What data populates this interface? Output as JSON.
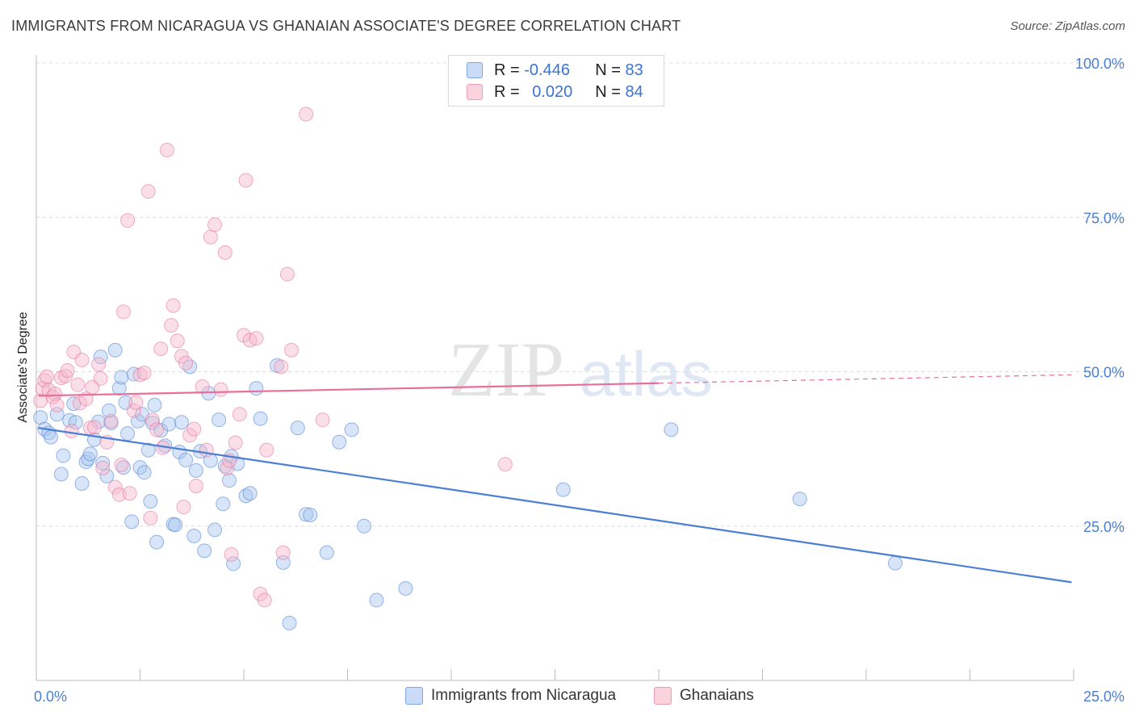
{
  "title": "IMMIGRANTS FROM NICARAGUA VS GHANAIAN ASSOCIATE'S DEGREE CORRELATION CHART",
  "source": "Source: ZipAtlas.com",
  "watermark": {
    "zip": "ZIP",
    "atlas": "atlas"
  },
  "legend": {
    "rows": [
      {
        "r_label": "R = ",
        "r_value": "-0.446",
        "n_label": "N = ",
        "n_value": "83",
        "color": "#a9c6f0"
      },
      {
        "r_label": "R = ",
        "r_value": "0.020",
        "n_label": "N = ",
        "n_value": "84",
        "color": "#f6b9cb"
      }
    ]
  },
  "bottom_legend": [
    {
      "label": "Immigrants from Nicaragua",
      "color": "#a9c6f0"
    },
    {
      "label": "Ghanaians",
      "color": "#f6b9cb"
    }
  ],
  "chart_data": {
    "type": "scatter",
    "title": "IMMIGRANTS FROM NICARAGUA VS GHANAIAN ASSOCIATE'S DEGREE CORRELATION CHART",
    "xlabel": "",
    "ylabel": "Associate's Degree",
    "xlim": [
      0,
      25
    ],
    "ylim": [
      0,
      100
    ],
    "x_tick_labels": [
      "0.0%",
      "25.0%"
    ],
    "y_ticks": [
      25,
      50,
      75,
      100
    ],
    "y_tick_labels": [
      "25.0%",
      "50.0%",
      "75.0%",
      "100.0%"
    ],
    "grid": true,
    "series": [
      {
        "name": "Immigrants from Nicaragua",
        "color": "#4a7fd4",
        "fill": "#a9c6f0",
        "trend": {
          "x0": 0.05,
          "y0": 40.9,
          "x1": 24.95,
          "y1": 15.9,
          "solid_until": 24.95
        },
        "points": [
          [
            0.1,
            42.6
          ],
          [
            0.2,
            40.7
          ],
          [
            0.3,
            40.1
          ],
          [
            0.35,
            39.4
          ],
          [
            0.5,
            43.1
          ],
          [
            0.6,
            33.4
          ],
          [
            0.65,
            36.4
          ],
          [
            0.8,
            42.1
          ],
          [
            0.9,
            44.8
          ],
          [
            0.95,
            41.8
          ],
          [
            1.1,
            31.9
          ],
          [
            1.2,
            35.4
          ],
          [
            1.25,
            35.9
          ],
          [
            1.3,
            36.7
          ],
          [
            1.4,
            39.0
          ],
          [
            1.5,
            41.9
          ],
          [
            1.55,
            52.4
          ],
          [
            1.6,
            35.2
          ],
          [
            1.7,
            33.1
          ],
          [
            1.75,
            43.7
          ],
          [
            1.8,
            41.7
          ],
          [
            1.9,
            53.5
          ],
          [
            2.0,
            47.3
          ],
          [
            2.05,
            49.1
          ],
          [
            2.1,
            34.5
          ],
          [
            2.15,
            45.0
          ],
          [
            2.2,
            40.0
          ],
          [
            2.3,
            25.7
          ],
          [
            2.35,
            49.6
          ],
          [
            2.45,
            42.0
          ],
          [
            2.5,
            34.5
          ],
          [
            2.55,
            43.1
          ],
          [
            2.6,
            33.7
          ],
          [
            2.7,
            37.3
          ],
          [
            2.75,
            29.0
          ],
          [
            2.8,
            41.7
          ],
          [
            2.85,
            44.6
          ],
          [
            2.9,
            22.4
          ],
          [
            3.0,
            40.5
          ],
          [
            3.1,
            38.0
          ],
          [
            3.2,
            41.5
          ],
          [
            3.3,
            25.3
          ],
          [
            3.35,
            25.2
          ],
          [
            3.45,
            37.0
          ],
          [
            3.5,
            41.8
          ],
          [
            3.6,
            35.7
          ],
          [
            3.7,
            50.8
          ],
          [
            3.8,
            23.4
          ],
          [
            3.85,
            34.0
          ],
          [
            3.95,
            37.1
          ],
          [
            4.05,
            21.0
          ],
          [
            4.15,
            46.5
          ],
          [
            4.2,
            35.6
          ],
          [
            4.3,
            24.4
          ],
          [
            4.4,
            42.2
          ],
          [
            4.5,
            28.6
          ],
          [
            4.55,
            34.7
          ],
          [
            4.65,
            32.4
          ],
          [
            4.7,
            36.3
          ],
          [
            4.75,
            18.9
          ],
          [
            4.85,
            35.1
          ],
          [
            5.05,
            29.9
          ],
          [
            5.15,
            30.3
          ],
          [
            5.3,
            47.3
          ],
          [
            5.4,
            42.4
          ],
          [
            5.8,
            51.0
          ],
          [
            5.95,
            19.1
          ],
          [
            6.1,
            9.3
          ],
          [
            6.3,
            40.9
          ],
          [
            6.5,
            26.9
          ],
          [
            6.6,
            26.8
          ],
          [
            7.0,
            20.7
          ],
          [
            7.3,
            38.6
          ],
          [
            7.6,
            40.6
          ],
          [
            7.9,
            25.0
          ],
          [
            8.2,
            13.0
          ],
          [
            8.9,
            14.9
          ],
          [
            12.7,
            30.9
          ],
          [
            15.3,
            40.6
          ],
          [
            18.4,
            29.4
          ],
          [
            20.7,
            19.0
          ]
        ]
      },
      {
        "name": "Ghanaians",
        "color": "#e6709a",
        "fill": "#f6b9cb",
        "trend": {
          "x0": 0.05,
          "y0": 46.1,
          "x1": 24.95,
          "y1": 49.5,
          "solid_until": 15.0
        },
        "points": [
          [
            0.1,
            45.3
          ],
          [
            0.15,
            47.3
          ],
          [
            0.2,
            48.6
          ],
          [
            0.25,
            49.2
          ],
          [
            0.3,
            47.0
          ],
          [
            0.4,
            45.9
          ],
          [
            0.45,
            46.4
          ],
          [
            0.5,
            44.6
          ],
          [
            0.6,
            49.0
          ],
          [
            0.7,
            49.3
          ],
          [
            0.75,
            50.2
          ],
          [
            0.85,
            40.4
          ],
          [
            0.9,
            53.2
          ],
          [
            1.0,
            47.9
          ],
          [
            1.05,
            44.9
          ],
          [
            1.1,
            51.9
          ],
          [
            1.2,
            45.6
          ],
          [
            1.3,
            40.9
          ],
          [
            1.35,
            47.5
          ],
          [
            1.4,
            41.0
          ],
          [
            1.5,
            51.2
          ],
          [
            1.55,
            48.9
          ],
          [
            1.6,
            34.4
          ],
          [
            1.7,
            38.6
          ],
          [
            1.8,
            42.0
          ],
          [
            1.9,
            31.3
          ],
          [
            2.0,
            30.1
          ],
          [
            2.05,
            34.9
          ],
          [
            2.1,
            59.7
          ],
          [
            2.2,
            74.5
          ],
          [
            2.25,
            30.3
          ],
          [
            2.35,
            43.7
          ],
          [
            2.4,
            45.0
          ],
          [
            2.5,
            49.5
          ],
          [
            2.6,
            49.8
          ],
          [
            2.7,
            79.2
          ],
          [
            2.75,
            26.3
          ],
          [
            2.8,
            42.2
          ],
          [
            2.9,
            40.6
          ],
          [
            3.0,
            53.7
          ],
          [
            3.05,
            37.7
          ],
          [
            3.15,
            85.9
          ],
          [
            3.25,
            57.5
          ],
          [
            3.3,
            60.7
          ],
          [
            3.4,
            55.0
          ],
          [
            3.5,
            52.5
          ],
          [
            3.55,
            28.1
          ],
          [
            3.6,
            51.4
          ],
          [
            3.7,
            39.7
          ],
          [
            3.8,
            40.7
          ],
          [
            3.85,
            31.5
          ],
          [
            4.0,
            47.6
          ],
          [
            4.1,
            37.3
          ],
          [
            4.2,
            71.8
          ],
          [
            4.3,
            73.8
          ],
          [
            4.45,
            47.1
          ],
          [
            4.55,
            69.3
          ],
          [
            4.6,
            34.4
          ],
          [
            4.65,
            35.6
          ],
          [
            4.7,
            20.4
          ],
          [
            4.8,
            38.5
          ],
          [
            4.9,
            43.1
          ],
          [
            5.0,
            55.9
          ],
          [
            5.05,
            81.0
          ],
          [
            5.15,
            55.1
          ],
          [
            5.3,
            55.4
          ],
          [
            5.4,
            14.0
          ],
          [
            5.5,
            13.0
          ],
          [
            5.55,
            37.3
          ],
          [
            5.9,
            50.8
          ],
          [
            5.95,
            20.7
          ],
          [
            6.05,
            65.8
          ],
          [
            6.15,
            53.5
          ],
          [
            6.5,
            91.7
          ],
          [
            6.9,
            42.2
          ],
          [
            11.3,
            35.0
          ]
        ]
      }
    ]
  }
}
